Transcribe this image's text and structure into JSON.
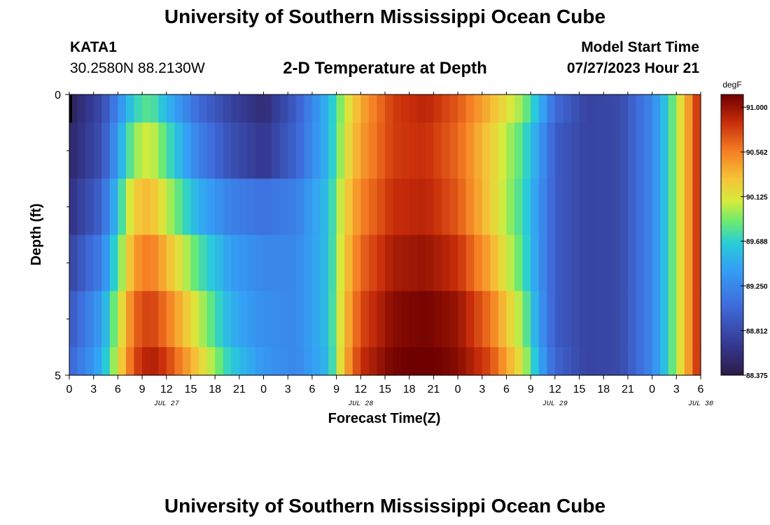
{
  "header": {
    "title": "University of Southern Mississippi Ocean Cube",
    "station": "KATA1",
    "coords": "30.2580N  88.2130W",
    "subtitle": "2-D Temperature at Depth",
    "model_start_label": "Model Start Time",
    "model_start_value": "07/27/2023 Hour 21"
  },
  "footer": {
    "title": "University of Southern Mississippi Ocean Cube"
  },
  "chart_data": {
    "type": "heatmap",
    "xlabel": "Forecast Time(Z)",
    "ylabel": "Depth (ft)",
    "x_tick_labels": [
      "0",
      "3",
      "6",
      "9",
      "12",
      "15",
      "18",
      "21",
      "0",
      "3",
      "6",
      "9",
      "12",
      "15",
      "18",
      "21",
      "0",
      "3",
      "6",
      "9",
      "12",
      "15",
      "18",
      "21",
      "0",
      "3",
      "6"
    ],
    "day_labels": [
      {
        "label": "JUL 27",
        "hour_offset": 12
      },
      {
        "label": "JUL 28",
        "hour_offset": 36
      },
      {
        "label": "JUL 29",
        "hour_offset": 60
      },
      {
        "label": "JUL 30",
        "hour_offset": 78
      }
    ],
    "x_range_hours": [
      0,
      78
    ],
    "y_range_ft": [
      0,
      5
    ],
    "y_tick_labels": [
      {
        "depth": 0,
        "label": "0"
      },
      {
        "depth": 5,
        "label": "5"
      }
    ],
    "y_minor_ticks": [
      1,
      2,
      3,
      4
    ],
    "depth_bands_ft": [
      0,
      0.5,
      1.5,
      2.5,
      3.5,
      4.5,
      5
    ],
    "colorbar": {
      "unit": "degF",
      "min": 88.375,
      "max": 91.125,
      "tick_labels": [
        "91.000",
        "90.562",
        "90.125",
        "89.688",
        "89.250",
        "88.812",
        "88.375"
      ]
    },
    "time_hours": [
      0,
      4,
      8,
      10,
      12,
      16,
      20,
      24,
      28,
      32,
      34,
      36,
      40,
      44,
      48,
      52,
      56,
      58,
      60,
      64,
      68,
      72,
      74,
      76,
      78
    ],
    "temperature_degF": [
      [
        88.45,
        88.8,
        89.7,
        89.85,
        89.55,
        89.05,
        88.75,
        88.55,
        88.95,
        89.55,
        90.05,
        90.4,
        90.8,
        90.9,
        90.7,
        90.35,
        89.95,
        89.55,
        89.05,
        88.75,
        88.8,
        89.25,
        89.7,
        90.3,
        90.95
      ],
      [
        88.5,
        88.85,
        89.95,
        90.1,
        89.8,
        89.2,
        88.85,
        88.65,
        89.0,
        89.55,
        90.1,
        90.45,
        90.8,
        90.85,
        90.65,
        90.25,
        89.8,
        89.4,
        88.95,
        88.75,
        88.8,
        89.25,
        89.7,
        90.3,
        90.95
      ],
      [
        88.6,
        89.0,
        90.25,
        90.35,
        90.05,
        89.5,
        89.2,
        89.1,
        89.2,
        89.6,
        90.2,
        90.55,
        90.85,
        90.9,
        90.7,
        90.25,
        89.75,
        89.35,
        88.95,
        88.75,
        88.8,
        89.25,
        89.7,
        90.3,
        90.95
      ],
      [
        88.75,
        89.2,
        90.45,
        90.6,
        90.35,
        89.8,
        89.4,
        89.25,
        89.25,
        89.6,
        90.25,
        90.65,
        90.95,
        91.0,
        90.85,
        90.4,
        89.8,
        89.35,
        88.95,
        88.75,
        88.8,
        89.25,
        89.7,
        90.3,
        90.95
      ],
      [
        88.9,
        89.4,
        90.65,
        90.8,
        90.6,
        90.05,
        89.5,
        89.3,
        89.25,
        89.6,
        90.3,
        90.75,
        91.05,
        91.1,
        91.0,
        90.6,
        89.95,
        89.4,
        88.95,
        88.75,
        88.8,
        89.25,
        89.7,
        90.3,
        90.95
      ],
      [
        89.0,
        89.5,
        90.75,
        90.95,
        90.8,
        90.25,
        89.65,
        89.35,
        89.25,
        89.55,
        90.35,
        90.85,
        91.1,
        91.15,
        91.05,
        90.75,
        90.1,
        89.5,
        89.0,
        88.75,
        88.8,
        89.25,
        89.7,
        90.3,
        90.95
      ]
    ]
  }
}
